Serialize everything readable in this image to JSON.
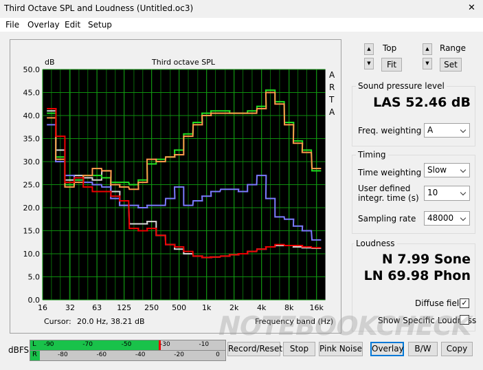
{
  "window": {
    "title": "Third Octave SPL and Loudness (Untitled.oc3)",
    "close": "✕"
  },
  "menu": [
    "File",
    "Overlay",
    "Edit",
    "Setup"
  ],
  "chart_data": {
    "type": "line",
    "title": "Third octave SPL",
    "y_label": "dB",
    "x_label": "Frequency band (Hz)",
    "side_label": "ARTA",
    "cursor_label": "Cursor:",
    "cursor_value": "20.0 Hz, 38.21 dB",
    "x_scale": "log",
    "step": true,
    "grid": true,
    "x": [
      20,
      25,
      31.5,
      40,
      50,
      63,
      80,
      100,
      125,
      160,
      200,
      250,
      315,
      400,
      500,
      630,
      800,
      1000,
      1250,
      1600,
      2000,
      2500,
      3150,
      4000,
      5000,
      6300,
      8000,
      10000,
      12500,
      16000
    ],
    "xlim": [
      16,
      20000
    ],
    "xticks": [
      16,
      32,
      63,
      125,
      250,
      500,
      {
        "value": 1000,
        "label": "1k"
      },
      {
        "value": 2000,
        "label": "2k"
      },
      {
        "value": 4000,
        "label": "4k"
      },
      {
        "value": 8000,
        "label": "8k"
      },
      {
        "value": 16000,
        "label": "16k"
      }
    ],
    "ylim": [
      0,
      50
    ],
    "yticks": [
      {
        "value": 0,
        "label": "0.0"
      },
      {
        "value": 5,
        "label": "5.0"
      },
      {
        "value": 10,
        "label": "10.0"
      },
      {
        "value": 15,
        "label": "15.0"
      },
      {
        "value": 20,
        "label": "20.0"
      },
      {
        "value": 25,
        "label": "25.0"
      },
      {
        "value": 30,
        "label": "30.0"
      },
      {
        "value": 35,
        "label": "35.0"
      },
      {
        "value": 40,
        "label": "40.0"
      },
      {
        "value": 45,
        "label": "45.0"
      },
      {
        "value": 50,
        "label": "50.0"
      }
    ],
    "series": [
      {
        "color": "#d8d8d8",
        "values": [
          41,
          32.5,
          26,
          27,
          26.5,
          26,
          28,
          23.5,
          20.5,
          16.5,
          16.5,
          17,
          14,
          12,
          11,
          10,
          9.5,
          9.2,
          9.3,
          9.5,
          9.8,
          10,
          10.5,
          11,
          11.5,
          11.8,
          11.8,
          11.5,
          11.3,
          11.2
        ]
      },
      {
        "color": "#7b7bff",
        "values": [
          38,
          30,
          27,
          26,
          25.5,
          25,
          24.5,
          22,
          20.5,
          20.5,
          20,
          20.5,
          20.5,
          22,
          24.5,
          20.5,
          21.5,
          22.5,
          23.5,
          24,
          24,
          23.5,
          25,
          27,
          22,
          18,
          17.5,
          16,
          15,
          13
        ]
      },
      {
        "color": "#22e022",
        "values": [
          40.5,
          31,
          25,
          26,
          27,
          27,
          26.5,
          25.5,
          25.5,
          25,
          26,
          29.5,
          30.5,
          31,
          32.5,
          36,
          38.5,
          40.5,
          41,
          41,
          40.5,
          40.5,
          41,
          42,
          45.5,
          43,
          38.5,
          34.5,
          32.5,
          28
        ]
      },
      {
        "color": "#ff9a4a",
        "values": [
          39.5,
          30.5,
          24.5,
          25.5,
          27,
          28.5,
          28,
          25,
          24.5,
          24,
          25.5,
          30.5,
          30,
          31,
          31.5,
          35.5,
          38,
          40,
          40.5,
          40.5,
          40.5,
          40.5,
          40.5,
          41.5,
          45,
          42.5,
          38,
          34,
          32,
          28.5
        ]
      },
      {
        "color": "#ee0000",
        "values": [
          41.5,
          35.5,
          25.5,
          26.5,
          24.5,
          23.5,
          23.5,
          22.5,
          21.5,
          15.5,
          15,
          15.5,
          14,
          12,
          11.5,
          10.5,
          9.5,
          9.2,
          9.3,
          9.5,
          9.8,
          10,
          10.5,
          11,
          11.5,
          12,
          11.8,
          11.8,
          11.5,
          11.3
        ]
      }
    ]
  },
  "controls": {
    "top": "Top",
    "fit": "Fit",
    "range": "Range",
    "set": "Set",
    "up": "▲",
    "down": "▼"
  },
  "spl": {
    "title": "Sound pressure level",
    "reading": "LAS 52.46 dB",
    "freq_weighting_label": "Freq. weighting",
    "freq_weighting": "A"
  },
  "timing": {
    "title": "Timing",
    "time_weighting_label": "Time weighting",
    "time_weighting": "Slow",
    "integr_label": "User defined integr. time (s)",
    "integr_time": "10",
    "sampling_rate_label": "Sampling rate",
    "sampling_rate": "48000"
  },
  "loudness": {
    "title": "Loudness",
    "sone": "N 7.99 Sone",
    "phon": "LN 69.98 Phon",
    "diffuse_field": "Diffuse field",
    "show_specific": "Show Specific Loudness"
  },
  "meter": {
    "unit": "dBFS",
    "left": "L",
    "right": "R",
    "left_scale": [
      -90,
      -70,
      -50,
      -30,
      -10
    ],
    "right_scale": [
      -80,
      -60,
      -40,
      -20,
      0
    ]
  },
  "buttons": [
    "Record/Reset",
    "Stop",
    "Pink Noise",
    "Overlay",
    "B/W",
    "Copy"
  ],
  "watermark": "NOTEBOOKCHECK"
}
